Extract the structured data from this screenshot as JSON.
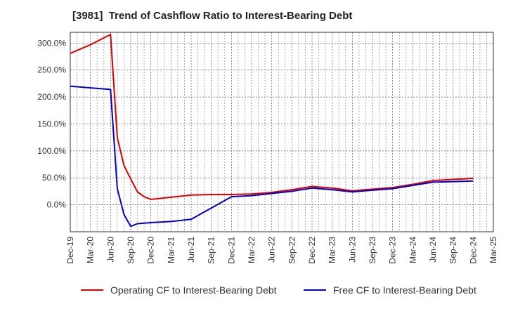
{
  "chart_data": {
    "type": "line",
    "title": "[3981]  Trend of Cashflow Ratio to Interest-Bearing Debt",
    "xlabel": "",
    "ylabel": "",
    "x_ticks": [
      "Dec-19",
      "Mar-20",
      "Jun-20",
      "Sep-20",
      "Dec-20",
      "Mar-21",
      "Jun-21",
      "Sep-21",
      "Dec-21",
      "Mar-22",
      "Jun-22",
      "Sep-22",
      "Dec-22",
      "Mar-23",
      "Jun-23",
      "Sep-23",
      "Dec-23",
      "Mar-24",
      "Jun-24",
      "Sep-24",
      "Dec-24",
      "Mar-25"
    ],
    "y_ticks": [
      "300.0%",
      "250.0%",
      "200.0%",
      "150.0%",
      "100.0%",
      "50.0%",
      "0.0%"
    ],
    "y_tick_values": [
      300,
      250,
      200,
      150,
      100,
      50,
      0
    ],
    "ylim": [
      -50,
      320
    ],
    "grid": true,
    "legend_position": "bottom",
    "series": [
      {
        "name": "Operating CF to Interest-Bearing Debt",
        "color": "#dd0000",
        "points": [
          [
            "Dec-19",
            281
          ],
          [
            "Mar-20",
            297
          ],
          [
            "Jun-20",
            316
          ],
          [
            "Jul-20",
            125
          ],
          [
            "Aug-20",
            73
          ],
          [
            "Sep-20",
            48
          ],
          [
            "Oct-20",
            24
          ],
          [
            "Nov-20",
            15
          ],
          [
            "Dec-20",
            10
          ],
          [
            "Mar-21",
            14
          ],
          [
            "Jun-21",
            18
          ],
          [
            "Sep-21",
            19
          ],
          [
            "Dec-21",
            19
          ],
          [
            "Mar-22",
            20
          ],
          [
            "Jun-22",
            23
          ],
          [
            "Sep-22",
            28
          ],
          [
            "Dec-22",
            34
          ],
          [
            "Mar-23",
            31
          ],
          [
            "Jun-23",
            26
          ],
          [
            "Sep-23",
            29
          ],
          [
            "Dec-23",
            32
          ],
          [
            "Mar-24",
            38
          ],
          [
            "Jun-24",
            45
          ],
          [
            "Sep-24",
            47
          ],
          [
            "Dec-24",
            49
          ]
        ]
      },
      {
        "name": "Free CF to Interest-Bearing Debt",
        "color": "#0000cc",
        "points": [
          [
            "Dec-19",
            220
          ],
          [
            "Mar-20",
            217
          ],
          [
            "Jun-20",
            214
          ],
          [
            "Jul-20",
            30
          ],
          [
            "Aug-20",
            -18
          ],
          [
            "Sep-20",
            -40
          ],
          [
            "Oct-20",
            -35
          ],
          [
            "Nov-20",
            -34
          ],
          [
            "Dec-20",
            -33
          ],
          [
            "Mar-21",
            -31
          ],
          [
            "Jun-21",
            -27
          ],
          [
            "Sep-21",
            -6
          ],
          [
            "Dec-21",
            15
          ],
          [
            "Mar-22",
            17
          ],
          [
            "Jun-22",
            21
          ],
          [
            "Sep-22",
            25
          ],
          [
            "Dec-22",
            31
          ],
          [
            "Mar-23",
            28
          ],
          [
            "Jun-23",
            24
          ],
          [
            "Sep-23",
            27
          ],
          [
            "Dec-23",
            30
          ],
          [
            "Mar-24",
            36
          ],
          [
            "Jun-24",
            42
          ],
          [
            "Sep-24",
            43
          ],
          [
            "Dec-24",
            44
          ]
        ]
      }
    ]
  }
}
